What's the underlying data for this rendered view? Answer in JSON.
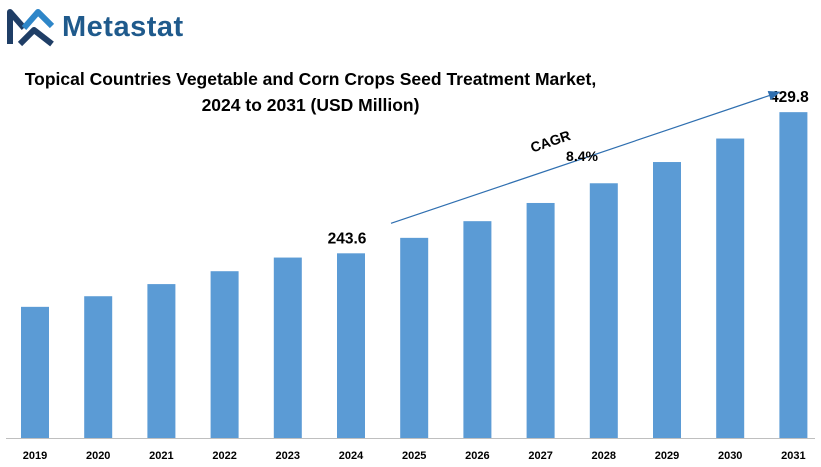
{
  "brand": {
    "name": "Metastat",
    "icon": "metastat-m-logo",
    "color": "#1f5a8c"
  },
  "chart_data": {
    "type": "bar",
    "title_lines": [
      "Topical Countries Vegetable and Corn Crops Seed Treatment Market,",
      "2024 to 2031 (USD Million)"
    ],
    "xlabel": "",
    "ylabel": "",
    "categories": [
      "2019",
      "2020",
      "2021",
      "2022",
      "2023",
      "2024",
      "2025",
      "2026",
      "2027",
      "2028",
      "2029",
      "2030",
      "2031"
    ],
    "values": [
      173,
      187,
      203,
      220,
      238,
      243.6,
      264,
      286,
      310,
      336,
      364,
      395,
      429.8
    ],
    "data_labels": [
      {
        "category": "2024",
        "text": "243.6"
      },
      {
        "category": "2031",
        "text": "429.8"
      }
    ],
    "annotation": {
      "label": "CAGR",
      "value": "8.4%",
      "from": "2024",
      "to": "2031"
    },
    "ylim": [
      0,
      430
    ],
    "grid": false,
    "bar_color": "#5b9bd5",
    "axis_color": "#bfbfbf"
  }
}
